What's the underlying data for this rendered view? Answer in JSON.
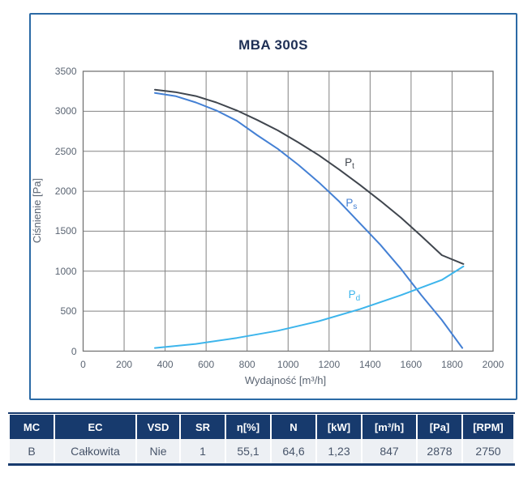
{
  "title": "MBA 300S",
  "chart_data": {
    "type": "line",
    "title": "MBA 300S",
    "xlabel": "Wydajność [m³/h]",
    "ylabel": "Ciśnienie [Pa]",
    "xlim": [
      0,
      2000
    ],
    "ylim": [
      0,
      3500
    ],
    "xticks": [
      0,
      200,
      400,
      600,
      800,
      1000,
      1200,
      1400,
      1600,
      1800,
      2000
    ],
    "yticks": [
      0,
      500,
      1000,
      1500,
      2000,
      2500,
      3000,
      3500
    ],
    "grid": true,
    "legend_position": "inline-labels",
    "series": [
      {
        "name": "Pt",
        "label_main": "P",
        "label_sub": "t",
        "color": "#40464e",
        "label_at": [
          1300,
          2345
        ],
        "points": [
          [
            350,
            3270
          ],
          [
            450,
            3240
          ],
          [
            550,
            3190
          ],
          [
            650,
            3110
          ],
          [
            750,
            3010
          ],
          [
            850,
            2890
          ],
          [
            950,
            2760
          ],
          [
            1050,
            2610
          ],
          [
            1150,
            2450
          ],
          [
            1250,
            2270
          ],
          [
            1350,
            2080
          ],
          [
            1450,
            1880
          ],
          [
            1550,
            1670
          ],
          [
            1650,
            1440
          ],
          [
            1750,
            1200
          ],
          [
            1855,
            1090
          ]
        ]
      },
      {
        "name": "Ps",
        "label_main": "P",
        "label_sub": "s",
        "color": "#4480d4",
        "label_at": [
          1305,
          1840
        ],
        "points": [
          [
            350,
            3230
          ],
          [
            450,
            3190
          ],
          [
            550,
            3110
          ],
          [
            650,
            3010
          ],
          [
            750,
            2880
          ],
          [
            850,
            2700
          ],
          [
            950,
            2530
          ],
          [
            1050,
            2330
          ],
          [
            1150,
            2110
          ],
          [
            1250,
            1870
          ],
          [
            1350,
            1600
          ],
          [
            1450,
            1330
          ],
          [
            1550,
            1030
          ],
          [
            1650,
            700
          ],
          [
            1750,
            390
          ],
          [
            1850,
            40
          ]
        ]
      },
      {
        "name": "Pd",
        "label_main": "P",
        "label_sub": "d",
        "color": "#3db5ec",
        "label_at": [
          1318,
          695
        ],
        "points": [
          [
            350,
            40
          ],
          [
            550,
            90
          ],
          [
            750,
            165
          ],
          [
            950,
            255
          ],
          [
            1150,
            375
          ],
          [
            1350,
            525
          ],
          [
            1550,
            700
          ],
          [
            1750,
            890
          ],
          [
            1855,
            1060
          ]
        ]
      }
    ]
  },
  "table": {
    "headers": [
      "MC",
      "EC",
      "VSD",
      "SR",
      "η[%]",
      "N",
      "[kW]",
      "[m³/h]",
      "[Pa]",
      "[RPM]"
    ],
    "rows": [
      [
        "B",
        "Całkowita",
        "Nie",
        "1",
        "55,1",
        "64,6",
        "1,23",
        "847",
        "2878",
        "2750"
      ]
    ]
  },
  "colors": {
    "panel_border": "#2b6aa5",
    "title": "#1e2f55",
    "grid": "#828282",
    "frame": "#757575",
    "axis_text": "#5b6573",
    "table_header_bg": "#173a6d",
    "table_row_bg": "#edf0f4",
    "table_text": "#475469"
  }
}
